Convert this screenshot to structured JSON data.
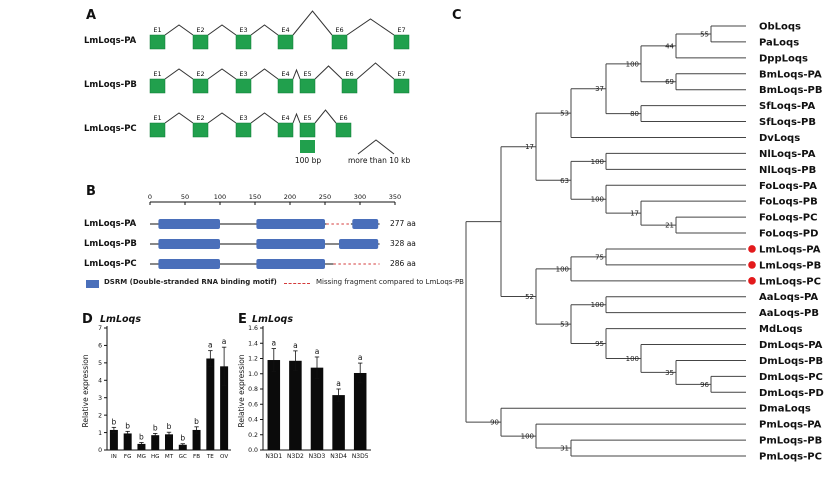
{
  "panels": {
    "a_label": "A",
    "b_label": "B",
    "c_label": "C",
    "d_label": "D",
    "e_label": "E"
  },
  "panelA": {
    "exon_color": "#21a04d",
    "rows": [
      {
        "name": "LmLoqs-PA",
        "exons": [
          "E1",
          "E2",
          "E3",
          "E4",
          "E6",
          "E7"
        ]
      },
      {
        "name": "LmLoqs-PB",
        "exons": [
          "E1",
          "E2",
          "E3",
          "E4",
          "E5",
          "E6",
          "E7"
        ]
      },
      {
        "name": "LmLoqs-PC",
        "exons": [
          "E1",
          "E2",
          "E3",
          "E4",
          "E5",
          "E6"
        ]
      }
    ],
    "legend": {
      "box": "100 bp",
      "peak": "more than 10 kb"
    }
  },
  "panelB": {
    "domain_color": "#4a6fba",
    "missing_color": "#d43b3b",
    "ruler": [
      0,
      50,
      100,
      150,
      200,
      250,
      300,
      350
    ],
    "rows": [
      {
        "name": "LmLoqs-PA",
        "length_label": "277 aa"
      },
      {
        "name": "LmLoqs-PB",
        "length_label": "328 aa"
      },
      {
        "name": "LmLoqs-PC",
        "length_label": "286 aa"
      }
    ],
    "legend_dsrm": "DSRM (Double-stranded RNA binding motif)",
    "legend_missing": "Missing fragment compared to LmLoqs-PB"
  },
  "tree": {
    "highlight_color": "#e31a1c",
    "root": {
      "children": [
        {
          "children": [
            {
              "support": 17,
              "children": [
                {
                  "support": 53,
                  "children": [
                    {
                      "support": 37,
                      "children": [
                        {
                          "support": 100,
                          "children": [
                            {
                              "support": 44,
                              "children": [
                                {
                                  "support": 55,
                                  "children": [
                                    {
                                      "name": "ObLoqs"
                                    },
                                    {
                                      "name": "PaLoqs"
                                    }
                                  ]
                                },
                                {
                                  "name": "DppLoqs"
                                }
                              ]
                            },
                            {
                              "support": 69,
                              "children": [
                                {
                                  "name": "BmLoqs-PA"
                                },
                                {
                                  "name": "BmLoqs-PB"
                                }
                              ]
                            }
                          ]
                        },
                        {
                          "support": 80,
                          "children": [
                            {
                              "name": "SfLoqs-PA"
                            },
                            {
                              "name": "SfLoqs-PB"
                            }
                          ]
                        }
                      ]
                    },
                    {
                      "name": "DvLoqs"
                    }
                  ]
                },
                {
                  "support": 63,
                  "children": [
                    {
                      "support": 100,
                      "children": [
                        {
                          "name": "NlLoqs-PA"
                        },
                        {
                          "name": "NlLoqs-PB"
                        }
                      ]
                    },
                    {
                      "support": 100,
                      "children": [
                        {
                          "name": "FoLoqs-PA"
                        },
                        {
                          "support": 17,
                          "children": [
                            {
                              "name": "FoLoqs-PB"
                            },
                            {
                              "support": 21,
                              "children": [
                                {
                                  "name": "FoLoqs-PC"
                                },
                                {
                                  "name": "FoLoqs-PD"
                                }
                              ]
                            }
                          ]
                        }
                      ]
                    }
                  ]
                }
              ]
            },
            {
              "support": 52,
              "children": [
                {
                  "support": 100,
                  "children": [
                    {
                      "support": 75,
                      "children": [
                        {
                          "name": "LmLoqs-PA",
                          "highlight": true
                        },
                        {
                          "name": "LmLoqs-PB",
                          "highlight": true
                        }
                      ]
                    },
                    {
                      "name": "LmLoqs-PC",
                      "highlight": true
                    }
                  ]
                },
                {
                  "support": 53,
                  "children": [
                    {
                      "support": 100,
                      "children": [
                        {
                          "name": "AaLoqs-PA"
                        },
                        {
                          "name": "AaLoqs-PB"
                        }
                      ]
                    },
                    {
                      "support": 95,
                      "children": [
                        {
                          "name": "MdLoqs"
                        },
                        {
                          "support": 100,
                          "children": [
                            {
                              "name": "DmLoqs-PA"
                            },
                            {
                              "support": 35,
                              "children": [
                                {
                                  "name": "DmLoqs-PB"
                                },
                                {
                                  "support": 96,
                                  "children": [
                                    {
                                      "name": "DmLoqs-PC"
                                    },
                                    {
                                      "name": "DmLoqs-PD"
                                    }
                                  ]
                                }
                              ]
                            }
                          ]
                        }
                      ]
                    }
                  ]
                }
              ]
            }
          ]
        },
        {
          "support": 90,
          "children": [
            {
              "name": "DmaLoqs"
            },
            {
              "support": 100,
              "children": [
                {
                  "name": "PmLoqs-PA"
                },
                {
                  "support": 31,
                  "children": [
                    {
                      "name": "PmLoqs-PB"
                    },
                    {
                      "name": "PmLoqs-PC"
                    }
                  ]
                }
              ]
            }
          ]
        }
      ]
    }
  },
  "chart_data": [
    {
      "type": "bar",
      "title": "LmLoqs",
      "ylabel": "Relative expression",
      "xlabel": "",
      "categories": [
        "IN",
        "FG",
        "MG",
        "HG",
        "MT",
        "GC",
        "FB",
        "TE",
        "OV"
      ],
      "values": [
        1.15,
        0.95,
        0.35,
        0.85,
        0.9,
        0.3,
        1.15,
        5.25,
        4.8
      ],
      "errors": [
        0.15,
        0.12,
        0.08,
        0.1,
        0.12,
        0.06,
        0.18,
        0.45,
        1.1
      ],
      "sig_letters": [
        "b",
        "b",
        "b",
        "b",
        "b",
        "b",
        "b",
        "a",
        "a"
      ],
      "ylim": [
        0,
        7
      ],
      "yticks": [
        0,
        1,
        2,
        3,
        4,
        5,
        6,
        7
      ],
      "ytick_labels": [
        "0",
        "1",
        "2",
        "3",
        "4",
        "5",
        "6",
        "7"
      ],
      "bar_color": "#0b0b0b",
      "grid": false,
      "legend": "none"
    },
    {
      "type": "bar",
      "title": "LmLoqs",
      "ylabel": "Relative expression",
      "xlabel": "",
      "categories": [
        "N3D1",
        "N3D2",
        "N3D3",
        "N3D4",
        "N3D5"
      ],
      "values": [
        1.18,
        1.17,
        1.08,
        0.72,
        1.01
      ],
      "errors": [
        0.15,
        0.13,
        0.14,
        0.08,
        0.13
      ],
      "sig_letters": [
        "a",
        "a",
        "a",
        "a",
        "a"
      ],
      "ylim": [
        0,
        1.6
      ],
      "yticks": [
        0,
        0.2,
        0.4,
        0.6,
        0.8,
        1.0,
        1.2,
        1.4,
        1.6
      ],
      "ytick_labels": [
        "0.0",
        "0.2",
        "0.4",
        "0.6",
        "0.8",
        "1.0",
        "1.2",
        "1.4",
        "1.6"
      ],
      "bar_color": "#0b0b0b",
      "grid": false,
      "legend": "none"
    }
  ]
}
